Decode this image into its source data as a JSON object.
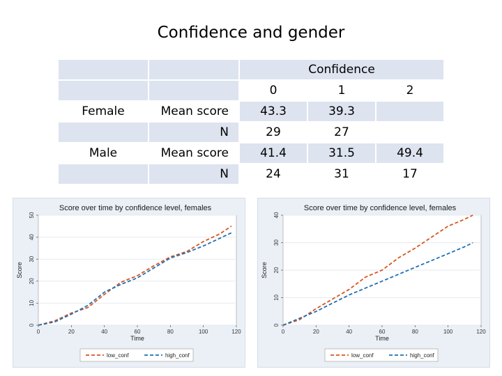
{
  "slide": {
    "title": "Confidence and gender"
  },
  "table": {
    "header_group": "Confidence",
    "levels": [
      "0",
      "1",
      "2"
    ],
    "rows": [
      {
        "group": "Female",
        "stat": "Mean score",
        "values": [
          "43.3",
          "39.3",
          ""
        ]
      },
      {
        "group": "",
        "stat": "N",
        "values": [
          "29",
          "27",
          ""
        ]
      },
      {
        "group": "Male",
        "stat": "Mean score",
        "values": [
          "41.4",
          "31.5",
          "49.4"
        ]
      },
      {
        "group": "",
        "stat": "N",
        "values": [
          "24",
          "31",
          "17"
        ]
      }
    ]
  },
  "chart_data": [
    {
      "type": "line",
      "title": "Score over time by confidence level, females",
      "xlabel": "Time",
      "ylabel": "Score",
      "xlim": [
        0,
        120
      ],
      "ylim": [
        0,
        50
      ],
      "xticks": [
        "0",
        "20",
        "40",
        "60",
        "80",
        "100",
        "120"
      ],
      "yticks": [
        "0",
        "10",
        "20",
        "30",
        "40",
        "50"
      ],
      "legend_position": "bottom",
      "grid": true,
      "series": [
        {
          "name": "low_conf",
          "color": "#d9541e",
          "dash": "dashed",
          "x": [
            0,
            10,
            20,
            30,
            40,
            50,
            60,
            70,
            80,
            90,
            100,
            110,
            117
          ],
          "y": [
            0,
            2,
            5.5,
            8,
            14,
            19.5,
            22.5,
            27,
            31,
            33.5,
            38,
            41.5,
            45
          ]
        },
        {
          "name": "high_conf",
          "color": "#1f6fb4",
          "dash": "dashed",
          "x": [
            0,
            10,
            20,
            30,
            40,
            50,
            60,
            70,
            80,
            90,
            100,
            110,
            117
          ],
          "y": [
            0,
            1.5,
            5,
            9,
            15,
            18.5,
            21.5,
            26,
            30.5,
            33,
            36,
            39.5,
            42
          ]
        }
      ]
    },
    {
      "type": "line",
      "title": "Score over time by confidence level, females",
      "xlabel": "Time",
      "ylabel": "Score",
      "xlim": [
        0,
        120
      ],
      "ylim": [
        0,
        40
      ],
      "xticks": [
        "0",
        "20",
        "40",
        "60",
        "80",
        "100",
        "120"
      ],
      "yticks": [
        "0",
        "10",
        "20",
        "30",
        "40"
      ],
      "legend_position": "bottom",
      "grid": true,
      "series": [
        {
          "name": "low_conf",
          "color": "#d9541e",
          "dash": "dashed",
          "x": [
            0,
            10,
            20,
            30,
            40,
            50,
            60,
            70,
            80,
            90,
            100,
            110,
            115
          ],
          "y": [
            0,
            2,
            6,
            9.5,
            13,
            17.5,
            20,
            24.5,
            28,
            32,
            36,
            38.5,
            40
          ]
        },
        {
          "name": "high_conf",
          "color": "#1f6fb4",
          "dash": "dashed",
          "x": [
            0,
            10,
            20,
            30,
            40,
            50,
            60,
            70,
            80,
            90,
            100,
            110,
            115
          ],
          "y": [
            0,
            2.5,
            5,
            8,
            11,
            13.5,
            16,
            18.5,
            21,
            23.5,
            26,
            28.5,
            30
          ]
        }
      ]
    }
  ]
}
